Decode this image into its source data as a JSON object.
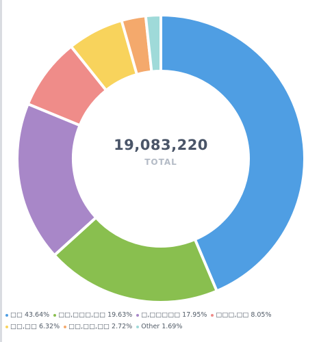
{
  "chart_data": {
    "type": "pie",
    "variant": "donut",
    "total": "19,083,220",
    "total_label": "TOTAL",
    "slices": [
      {
        "label": "□□",
        "percent": 43.64,
        "percent_text": "43.64%",
        "color": "#4f9ee3"
      },
      {
        "label": "□□,□□□,□□",
        "percent": 19.63,
        "percent_text": "19.63%",
        "color": "#89bf4f"
      },
      {
        "label": "□,□□□□□",
        "percent": 17.95,
        "percent_text": "17.95%",
        "color": "#a887c8"
      },
      {
        "label": "□□□,□□",
        "percent": 8.05,
        "percent_text": "8.05%",
        "color": "#ef8c89"
      },
      {
        "label": "□□,□□",
        "percent": 6.32,
        "percent_text": "6.32%",
        "color": "#f8d35c"
      },
      {
        "label": "□□,□□,□□",
        "percent": 2.72,
        "percent_text": "2.72%",
        "color": "#f4a96c"
      },
      {
        "label": "Other",
        "percent": 1.69,
        "percent_text": "1.69%",
        "color": "#9fdad9"
      }
    ]
  }
}
